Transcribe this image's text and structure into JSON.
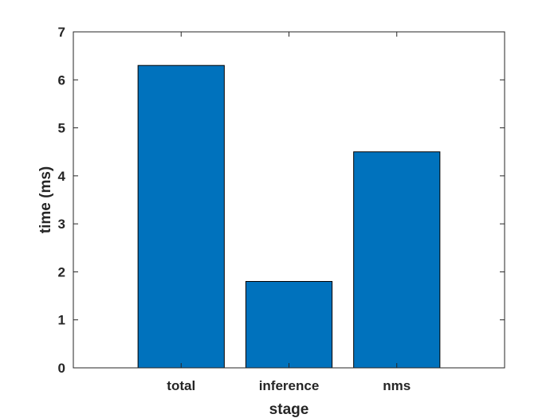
{
  "chart_data": {
    "type": "bar",
    "title": "",
    "xlabel": "stage",
    "ylabel": "time (ms)",
    "categories": [
      "total",
      "inference",
      "nms"
    ],
    "values": [
      6.3,
      1.8,
      4.5
    ],
    "ylim": [
      0,
      7
    ],
    "yticks": [
      0,
      1,
      2,
      3,
      4,
      5,
      6,
      7
    ],
    "xlim": [
      0,
      4
    ],
    "grid": false,
    "bar_color": "#0072BD",
    "bar_edge_color": "#000000"
  }
}
